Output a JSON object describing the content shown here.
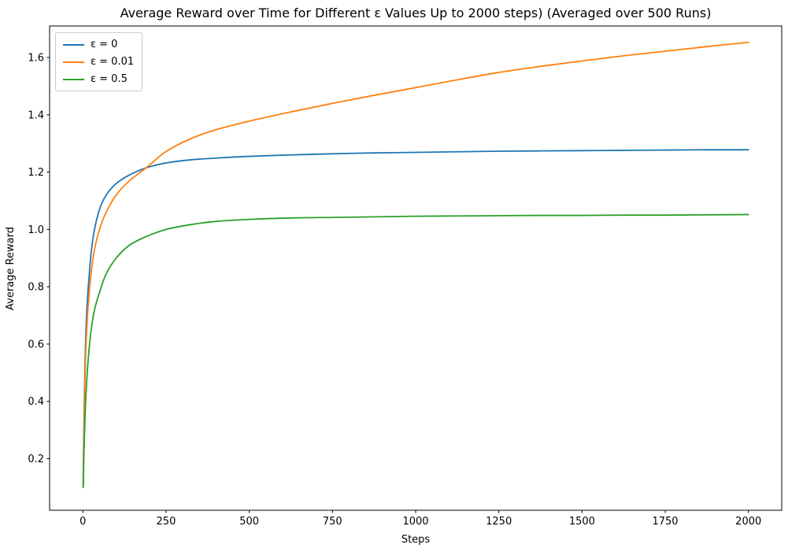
{
  "figure": {
    "background": "#ffffff",
    "text_color": "#000000",
    "spine_color": "#000000"
  },
  "chart_data": {
    "type": "line",
    "title": "Average Reward over Time for Different ε Values Up to 2000 steps) (Averaged over 500 Runs)",
    "xlabel": "Steps",
    "ylabel": "Average Reward",
    "xlim": [
      -100,
      2100
    ],
    "ylim": [
      0.02,
      1.71
    ],
    "grid": false,
    "legend_position": "upper-left",
    "x_ticks": {
      "values": [
        0,
        250,
        500,
        750,
        1000,
        1250,
        1500,
        1750,
        2000
      ],
      "labels": [
        "0",
        "250",
        "500",
        "750",
        "1000",
        "1250",
        "1500",
        "1750",
        "2000"
      ]
    },
    "y_ticks": {
      "values": [
        0.2,
        0.4,
        0.6,
        0.8,
        1.0,
        1.2,
        1.4,
        1.6
      ],
      "labels": [
        "0.2",
        "0.4",
        "0.6",
        "0.8",
        "1.0",
        "1.2",
        "1.4",
        "1.6"
      ]
    },
    "x": [
      1,
      2,
      3,
      5,
      8,
      12,
      17,
      25,
      35,
      50,
      70,
      100,
      140,
      190,
      250,
      325,
      400,
      500,
      625,
      750,
      875,
      1000,
      1125,
      1250,
      1375,
      1500,
      1625,
      1750,
      1875,
      2000
    ],
    "series": [
      {
        "name": "ε = 0",
        "color": "#1f77b4",
        "values": [
          0.1,
          0.21,
          0.3,
          0.45,
          0.6,
          0.72,
          0.81,
          0.92,
          1.0,
          1.07,
          1.12,
          1.16,
          1.19,
          1.215,
          1.232,
          1.243,
          1.249,
          1.255,
          1.26,
          1.264,
          1.267,
          1.269,
          1.271,
          1.273,
          1.274,
          1.275,
          1.276,
          1.277,
          1.278,
          1.278
        ]
      },
      {
        "name": "ε = 0.01",
        "color": "#ff7f0e",
        "values": [
          0.1,
          0.19,
          0.27,
          0.41,
          0.55,
          0.66,
          0.75,
          0.85,
          0.93,
          1.0,
          1.06,
          1.12,
          1.17,
          1.215,
          1.272,
          1.317,
          1.348,
          1.378,
          1.41,
          1.44,
          1.468,
          1.495,
          1.522,
          1.548,
          1.569,
          1.588,
          1.606,
          1.622,
          1.638,
          1.653
        ]
      },
      {
        "name": "ε = 0.5",
        "color": "#2ca02c",
        "values": [
          0.1,
          0.16,
          0.21,
          0.29,
          0.39,
          0.48,
          0.56,
          0.65,
          0.72,
          0.78,
          0.845,
          0.9,
          0.945,
          0.975,
          1.0,
          1.017,
          1.028,
          1.035,
          1.04,
          1.042,
          1.044,
          1.046,
          1.047,
          1.048,
          1.049,
          1.049,
          1.05,
          1.05,
          1.051,
          1.052
        ]
      }
    ]
  }
}
